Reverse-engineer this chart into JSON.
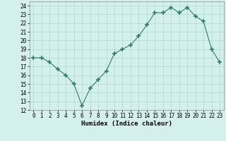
{
  "x": [
    0,
    1,
    2,
    3,
    4,
    5,
    6,
    7,
    8,
    9,
    10,
    11,
    12,
    13,
    14,
    15,
    16,
    17,
    18,
    19,
    20,
    21,
    22,
    23
  ],
  "y": [
    18.0,
    18.0,
    17.5,
    16.7,
    16.0,
    15.0,
    12.5,
    14.5,
    15.5,
    16.5,
    18.5,
    19.0,
    19.5,
    20.5,
    21.8,
    23.2,
    23.2,
    23.8,
    23.2,
    23.8,
    22.8,
    22.2,
    19.0,
    17.5
  ],
  "line_color": "#2e7d6e",
  "marker": "+",
  "marker_size": 4,
  "bg_color": "#d4f0ec",
  "grid_color": "#b0d8d0",
  "xlabel": "Humidex (Indice chaleur)",
  "xlim": [
    -0.5,
    23.5
  ],
  "ylim": [
    12,
    24.5
  ],
  "yticks": [
    12,
    13,
    14,
    15,
    16,
    17,
    18,
    19,
    20,
    21,
    22,
    23,
    24
  ],
  "xticks": [
    0,
    1,
    2,
    3,
    4,
    5,
    6,
    7,
    8,
    9,
    10,
    11,
    12,
    13,
    14,
    15,
    16,
    17,
    18,
    19,
    20,
    21,
    22,
    23
  ],
  "label_fontsize": 6.5,
  "tick_fontsize": 5.5
}
